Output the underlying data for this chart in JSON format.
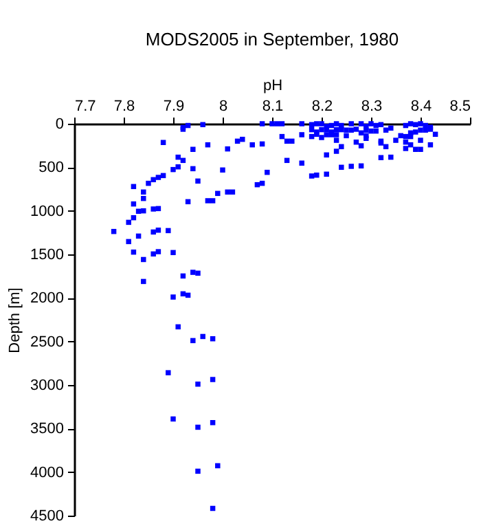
{
  "chart_data": {
    "type": "scatter",
    "title": "MODS2005 in September, 1980",
    "xlabel": "pH",
    "ylabel": "Depth [m]",
    "xlim": [
      7.7,
      8.5
    ],
    "xticks": [
      7.7,
      7.8,
      7.9,
      {
        "value": 8.0,
        "label": "8"
      },
      8.1,
      8.2,
      8.3,
      8.4,
      8.5
    ],
    "ylim": [
      4500,
      0
    ],
    "yticks": [
      0,
      500,
      1000,
      1500,
      2000,
      2500,
      3000,
      3500,
      4000,
      4500
    ],
    "marker": "square",
    "x": [
      7.92,
      7.92,
      7.93,
      7.96,
      8.08,
      7.88,
      7.97,
      7.94,
      8.01,
      8.03,
      8.04,
      8.06,
      8.08,
      7.91,
      7.92,
      7.94,
      7.9,
      7.91,
      8.0,
      7.88,
      7.87,
      7.86,
      7.85,
      7.82,
      7.95,
      7.99,
      7.97,
      7.98,
      8.01,
      8.02,
      8.07,
      8.08,
      7.84,
      7.84,
      7.82,
      7.83,
      7.84,
      7.86,
      7.87,
      7.93,
      7.82,
      7.81,
      7.78,
      7.83,
      7.86,
      7.87,
      7.89,
      7.81,
      7.82,
      7.84,
      7.86,
      7.87,
      7.9,
      7.92,
      7.94,
      7.95,
      7.84,
      7.9,
      7.92,
      7.93,
      7.91,
      7.94,
      7.96,
      7.98,
      7.89,
      7.95,
      7.98,
      7.9,
      7.95,
      7.98,
      7.95,
      7.99,
      7.98,
      8.1,
      8.11,
      8.12,
      8.16,
      8.18,
      8.19,
      8.2,
      8.21,
      8.22,
      8.23,
      8.24,
      8.26,
      8.28,
      8.29,
      8.3,
      8.31,
      8.32,
      8.34,
      8.37,
      8.38,
      8.39,
      8.4,
      8.41,
      8.42,
      8.18,
      8.19,
      8.2,
      8.21,
      8.22,
      8.23,
      8.24,
      8.25,
      8.26,
      8.27,
      8.28,
      8.29,
      8.3,
      8.31,
      8.33,
      8.36,
      8.38,
      8.39,
      8.4,
      8.41,
      8.42,
      8.43,
      8.16,
      8.18,
      8.19,
      8.2,
      8.21,
      8.22,
      8.23,
      8.25,
      8.29,
      8.37,
      8.38,
      8.12,
      8.13,
      8.14,
      8.23,
      8.27,
      8.28,
      8.29,
      8.32,
      8.32,
      8.33,
      8.35,
      8.37,
      8.37,
      8.38,
      8.39,
      8.4,
      8.4,
      8.42,
      8.24,
      8.23,
      8.21,
      8.32,
      8.34,
      8.13,
      8.16,
      8.24,
      8.26,
      8.28,
      8.09,
      8.18,
      8.19,
      8.21
    ],
    "series": [
      {
        "color": "#0000ff",
        "values": [
          42,
          63,
          20,
          10,
          0,
          215,
          242,
          294,
          289,
          200,
          179,
          242,
          232,
          384,
          421,
          516,
          526,
          495,
          531,
          595,
          616,
          642,
          684,
          721,
          658,
          800,
          884,
          884,
          784,
          784,
          700,
          684,
          784,
          858,
          921,
          1005,
          1000,
          979,
          974,
          895,
          1079,
          1132,
          1237,
          1290,
          1243,
          1222,
          1227,
          1353,
          1474,
          1559,
          1495,
          1469,
          1479,
          1748,
          1706,
          1716,
          1811,
          1990,
          1953,
          1969,
          2332,
          2490,
          2443,
          2469,
          2859,
          2990,
          2937,
          3390,
          3485,
          3432,
          3990,
          3927,
          4417,
          0,
          0,
          0,
          0,
          10,
          0,
          0,
          30,
          20,
          0,
          20,
          0,
          0,
          30,
          0,
          20,
          10,
          50,
          20,
          0,
          10,
          0,
          20,
          40,
          68,
          95,
          68,
          68,
          95,
          68,
          68,
          73,
          73,
          63,
          105,
          73,
          84,
          84,
          73,
          137,
          105,
          95,
          73,
          73,
          63,
          121,
          126,
          147,
          121,
          158,
          126,
          126,
          126,
          137,
          137,
          147,
          147,
          147,
          200,
          200,
          190,
          211,
          253,
          168,
          200,
          221,
          263,
          190,
          211,
          284,
          242,
          294,
          294,
          190,
          242,
          263,
          316,
          358,
          389,
          384,
          421,
          452,
          500,
          489,
          484,
          558,
          600,
          590,
          579
        ]
      }
    ]
  }
}
